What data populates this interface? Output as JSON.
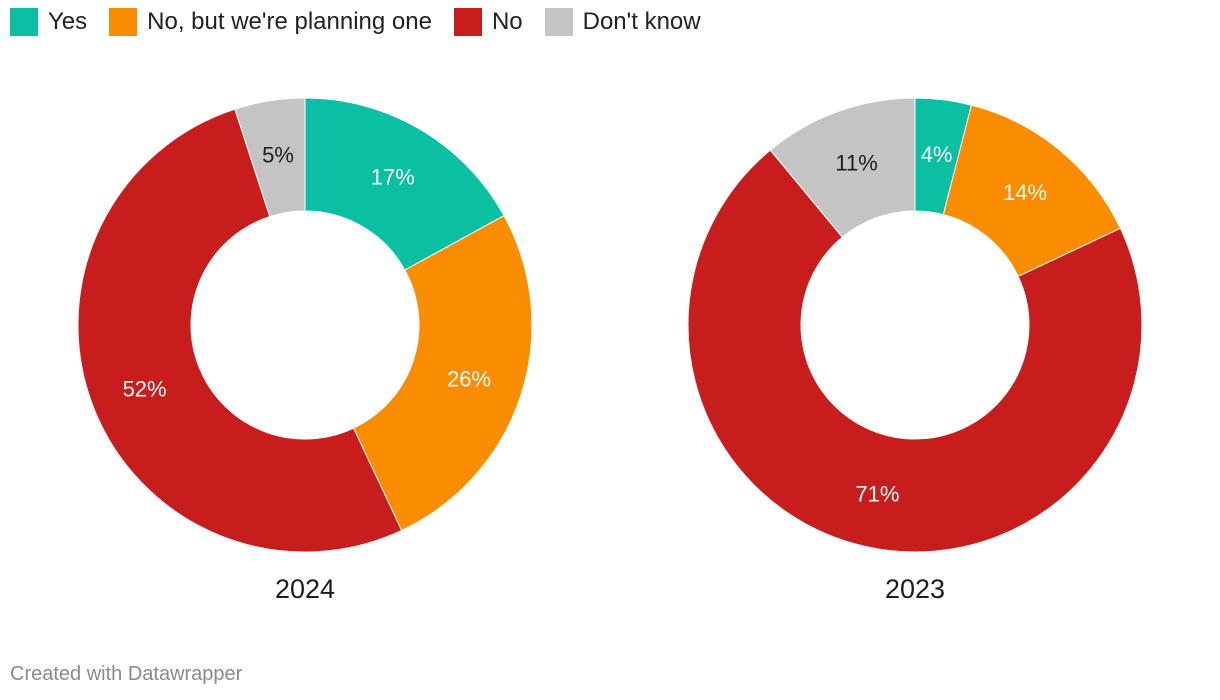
{
  "legend": [
    {
      "label": "Yes",
      "color": "#0bbfa3"
    },
    {
      "label": "No, but we're planning one",
      "color": "#fa8c00"
    },
    {
      "label": "No",
      "color": "#c71e1d"
    },
    {
      "label": "Don't know",
      "color": "#c4c4c4"
    }
  ],
  "chart_data": [
    {
      "type": "pie",
      "variant": "donut",
      "title": "2024",
      "categories": [
        "Yes",
        "No, but we're planning one",
        "No",
        "Don't know"
      ],
      "values": [
        17,
        26,
        52,
        5
      ],
      "labels": [
        "17%",
        "26%",
        "52%",
        "5%"
      ],
      "colors": [
        "#0bbfa3",
        "#fa8c00",
        "#c71e1d",
        "#c4c4c4"
      ],
      "label_colors": [
        "#ffffff",
        "#ffffff",
        "#ffffff",
        "#1d1d1d"
      ]
    },
    {
      "type": "pie",
      "variant": "donut",
      "title": "2023",
      "categories": [
        "Yes",
        "No, but we're planning one",
        "No",
        "Don't know"
      ],
      "values": [
        4,
        14,
        71,
        11
      ],
      "labels": [
        "4%",
        "14%",
        "71%",
        "11%"
      ],
      "colors": [
        "#0bbfa3",
        "#fa8c00",
        "#c71e1d",
        "#c4c4c4"
      ],
      "label_colors": [
        "#ffffff",
        "#ffffff",
        "#ffffff",
        "#1d1d1d"
      ]
    }
  ],
  "footer": {
    "text": "Created with Datawrapper"
  }
}
